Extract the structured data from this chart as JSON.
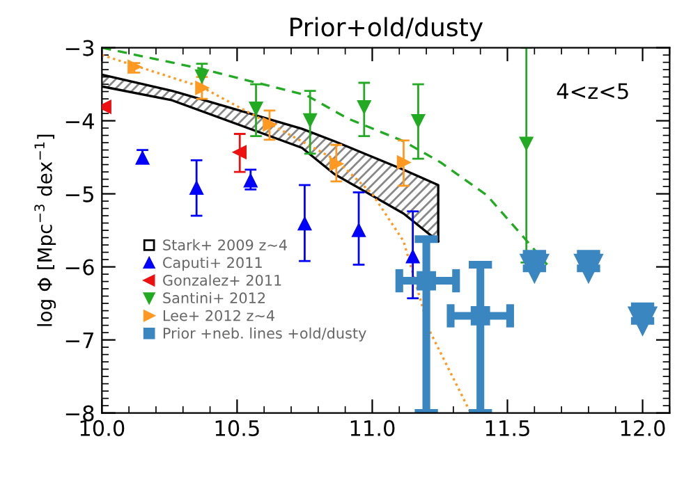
{
  "chart_data": {
    "type": "scatter",
    "title": "Prior+old/dusty",
    "ylabel": "log Φ [Mpc$^{−3}$ dex$^{−1}$]",
    "annotations": [
      "4<z<5"
    ],
    "xlim": [
      10.0,
      12.1
    ],
    "ylim": [
      -8,
      -3
    ],
    "xticks": [
      {
        "value": 10.0,
        "label": "10.0"
      },
      {
        "value": 10.5,
        "label": "10.5"
      },
      {
        "value": 11.0,
        "label": "11.0"
      },
      {
        "value": 11.5,
        "label": "11.5"
      },
      {
        "value": 12.0,
        "label": "12.0"
      }
    ],
    "yticks": [
      -8,
      -7,
      -6,
      -5,
      -4,
      -3
    ],
    "grid": false,
    "legend": "bottom left",
    "series": [
      {
        "type": "line",
        "name": "Stark+ 2009 z~4",
        "color": "#000000",
        "line_style": "solid",
        "marker": "none",
        "x": [
          10.0,
          10.26,
          10.74,
          10.86,
          11.116,
          11.244,
          11.244
        ],
        "values": [
          -3.37,
          -3.59,
          -4.11,
          -4.28,
          -4.67,
          -4.88,
          -5.65
        ]
      },
      {
        "type": "line",
        "color": "#000000",
        "line_style": "solid",
        "marker": "none",
        "x": [
          10.0,
          10.26,
          10.74,
          10.86,
          11.116,
          11.244
        ],
        "values": [
          -3.53,
          -3.72,
          -4.37,
          -4.73,
          -5.27,
          -5.65
        ]
      },
      {
        "type": "line",
        "color": "#22aa22",
        "line_style": "dashed",
        "marker": "none",
        "x": [
          10.0,
          10.37,
          10.756,
          10.91,
          11.116,
          11.253,
          11.424,
          11.566,
          11.647
        ],
        "values": [
          -3.0,
          -3.29,
          -3.65,
          -3.97,
          -4.28,
          -4.57,
          -5.02,
          -5.62,
          -5.97
        ]
      },
      {
        "type": "line",
        "color": "#ff9922",
        "line_style": "dotted",
        "marker": "none",
        "x": [
          10.0,
          10.37,
          10.62,
          10.867,
          11.0,
          11.116,
          11.21,
          11.364
        ],
        "values": [
          -3.1,
          -3.54,
          -4.04,
          -4.54,
          -5.0,
          -5.65,
          -6.86,
          -8.0
        ]
      },
      {
        "name": "Caputi+ 2011",
        "color": "#0000ff",
        "marker": "triangle-up",
        "x": [
          10.15,
          10.35,
          10.55,
          10.75,
          10.95,
          11.15
        ],
        "values": [
          -4.51,
          -4.92,
          -4.82,
          -5.41,
          -5.5,
          -5.86
        ],
        "errors": [
          [
            -4.57,
            -4.4
          ],
          [
            -5.3,
            -4.54
          ],
          [
            -4.94,
            -4.67
          ],
          [
            -5.92,
            -4.88
          ],
          [
            -5.97,
            -4.98
          ],
          [
            -6.43,
            -5.24
          ]
        ]
      },
      {
        "name": "Gonzalez+ 2011",
        "color": "#ee1111",
        "marker": "triangle-left",
        "x": [
          10.01,
          10.51
        ],
        "values": [
          -3.81,
          -4.43
        ],
        "errors": [
          null,
          [
            -4.7,
            -4.18
          ]
        ]
      },
      {
        "name": "Santini+ 2012",
        "color": "#22aa22",
        "marker": "triangle-down",
        "x": [
          10.37,
          10.57,
          10.77,
          10.97,
          11.17,
          11.57
        ],
        "values": [
          -3.39,
          -3.83,
          -3.99,
          -3.81,
          -4.0,
          -4.31
        ],
        "errors": [
          [
            -3.56,
            -3.22
          ],
          [
            -4.21,
            -3.5
          ],
          [
            -4.45,
            -3.59
          ],
          [
            -4.21,
            -3.48
          ],
          [
            -4.52,
            -3.5
          ],
          [
            -5.94,
            -3.0
          ]
        ]
      },
      {
        "name": "Lee+ 2012 z~4",
        "color": "#ff9922",
        "marker": "triangle-right",
        "x": [
          10.12,
          10.37,
          10.62,
          10.867,
          11.116
        ],
        "values": [
          -3.26,
          -3.55,
          -4.05,
          -4.59,
          -4.57
        ],
        "errors": [
          [
            -3.34,
            -3.21
          ],
          [
            -3.7,
            -3.4
          ],
          [
            -4.26,
            -3.86
          ],
          [
            -4.83,
            -4.33
          ],
          [
            -4.89,
            -4.27
          ]
        ]
      },
      {
        "name": "Prior +neb. lines +old/dusty",
        "color": "#3a86c0",
        "marker": "square",
        "x": [
          11.2,
          11.4
        ],
        "values": [
          -6.19,
          -6.67
        ],
        "errors": [
          [
            -8,
            -5.62
          ],
          [
            -8,
            -5.97
          ]
        ],
        "xerrors": [
          [
            11.1,
            11.31
          ],
          [
            11.29,
            11.51
          ]
        ]
      },
      {
        "type": "scatter",
        "color": "#3a86c0",
        "marker": "triangle-down",
        "x": [
          11.6,
          11.8,
          12.0
        ],
        "values": [
          -6.02,
          -6.02,
          -6.74
        ],
        "errors": [
          [
            -6.02,
            -5.82
          ],
          [
            -6.02,
            -5.82
          ],
          [
            -6.74,
            -6.54
          ]
        ]
      }
    ]
  }
}
